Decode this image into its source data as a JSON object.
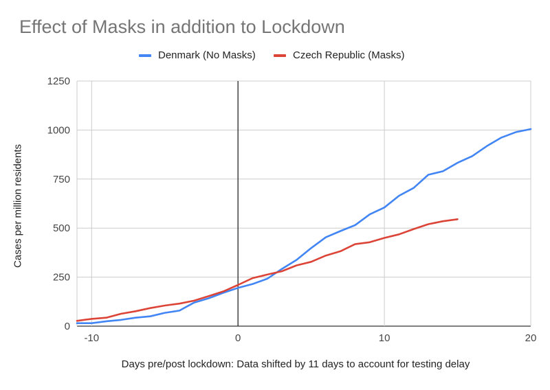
{
  "chart_data": {
    "type": "line",
    "title": "Effect of Masks in addition to Lockdown",
    "xlabel": "Days pre/post lockdown: Data shifted by 11 days to account for testing delay",
    "ylabel": "Cases per million residents",
    "xlim": [
      -11,
      20
    ],
    "ylim": [
      0,
      1250
    ],
    "xticks": [
      -10,
      0,
      10,
      20
    ],
    "yticks": [
      0,
      250,
      500,
      750,
      1000,
      1250
    ],
    "grid": true,
    "legend_position": "top-center",
    "reference_line_x": 0,
    "series": [
      {
        "name": "Denmark (No Masks)",
        "color": "#4285F4",
        "x": [
          -11,
          -10,
          -9,
          -8,
          -7,
          -6,
          -5,
          -4,
          -3,
          -2,
          -1,
          0,
          1,
          2,
          3,
          4,
          5,
          6,
          7,
          8,
          9,
          10,
          11,
          12,
          13,
          14,
          15,
          16,
          17,
          18,
          19,
          20
        ],
        "values": [
          15,
          15,
          25,
          32,
          43,
          50,
          68,
          79,
          120,
          142,
          170,
          195,
          215,
          242,
          292,
          338,
          398,
          453,
          485,
          515,
          570,
          605,
          665,
          705,
          772,
          790,
          833,
          867,
          918,
          962,
          990,
          1005
        ]
      },
      {
        "name": "Czech Republic (Masks)",
        "color": "#DB4437",
        "x": [
          -11,
          -10,
          -9,
          -8,
          -7,
          -6,
          -5,
          -4,
          -3,
          -2,
          -1,
          0,
          1,
          2,
          3,
          4,
          5,
          6,
          7,
          8,
          9,
          10,
          11,
          12,
          13,
          14,
          15
        ],
        "values": [
          27,
          37,
          43,
          63,
          76,
          92,
          105,
          115,
          130,
          153,
          177,
          210,
          245,
          263,
          280,
          310,
          328,
          360,
          382,
          418,
          428,
          450,
          468,
          495,
          520,
          535,
          545
        ]
      }
    ]
  }
}
